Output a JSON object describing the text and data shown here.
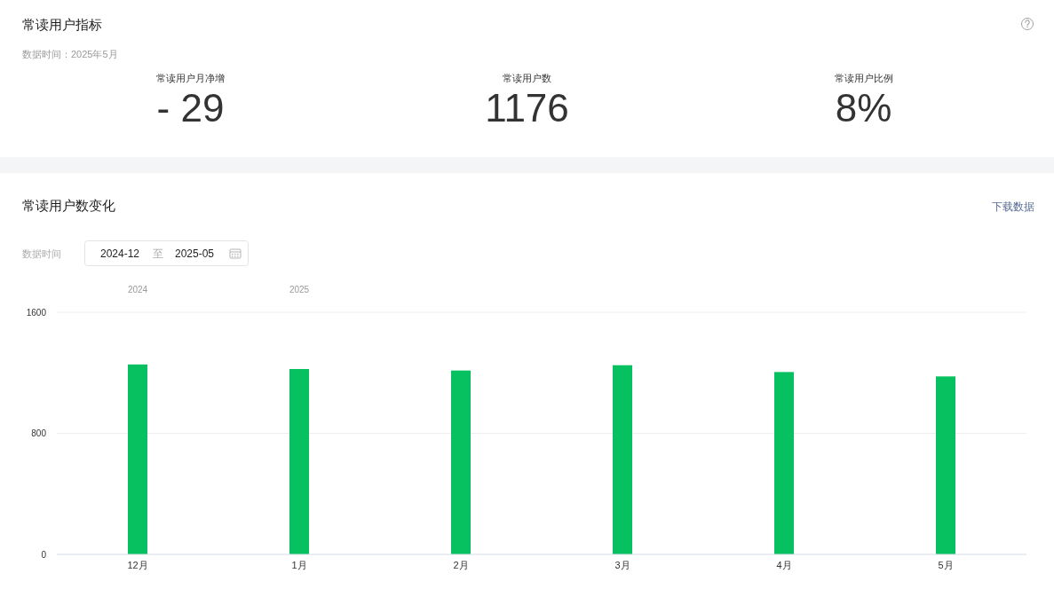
{
  "chart_data": [
    {
      "type": "other",
      "title": "常读用户指标",
      "subtitle": "数据时间：2025年5月",
      "annotations": [
        "常读用户月净增",
        "- 29",
        "常读用户数",
        "1176",
        "常读用户比例",
        "8%"
      ]
    },
    {
      "type": "bar",
      "title": "常读用户数变化",
      "annotations": [
        "下载数据",
        "数据时间",
        "2024-12",
        "至",
        "2025-05",
        "2024",
        "2025"
      ],
      "categories": [
        "12月",
        "1月",
        "2月",
        "3月",
        "4月",
        "5月"
      ],
      "values": [
        1255,
        1225,
        1215,
        1250,
        1205,
        1176
      ],
      "color": "#07c160",
      "ylim": [
        0,
        1600
      ],
      "yticks": [
        0,
        800,
        1600
      ],
      "grid": "y"
    }
  ]
}
